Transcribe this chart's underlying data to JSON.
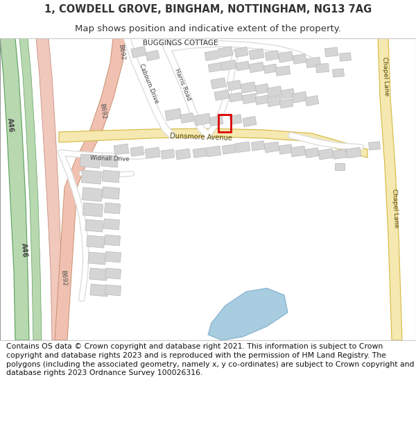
{
  "title_line1": "1, COWDELL GROVE, BINGHAM, NOTTINGHAM, NG13 7AG",
  "title_line2": "Map shows position and indicative extent of the property.",
  "footer_text": "Contains OS data © Crown copyright and database right 2021. This information is subject to Crown copyright and database rights 2023 and is reproduced with the permission of HM Land Registry. The polygons (including the associated geometry, namely x, y co-ordinates) are subject to Crown copyright and database rights 2023 Ordnance Survey 100026316.",
  "bg_color": "#ffffff",
  "map_bg": "#f5f5f5",
  "road_A46_green_fill": "#b8d8b0",
  "road_A46_green_edge": "#5a9e5a",
  "road_A46_pink_fill": "#f0c8bc",
  "road_A46_pink_edge": "#c89080",
  "road_B692_fill": "#f0c0b0",
  "road_B692_edge": "#c89070",
  "road_dunsmore_fill": "#f5e8b0",
  "road_dunsmore_edge": "#d4b840",
  "road_chapel_fill": "#f5e8b0",
  "road_chapel_edge": "#d4b840",
  "road_white": "#ffffff",
  "building_fill": "#d8d8d8",
  "building_edge": "#bbbbbb",
  "road_outline": "#e0e0e0",
  "highlight_color": "#dd0000",
  "water_color": "#a8cce0",
  "text_dark": "#333333",
  "title_fontsize": 10.5,
  "subtitle_fontsize": 9.5,
  "footer_fontsize": 7.8,
  "map_border_color": "#999999"
}
